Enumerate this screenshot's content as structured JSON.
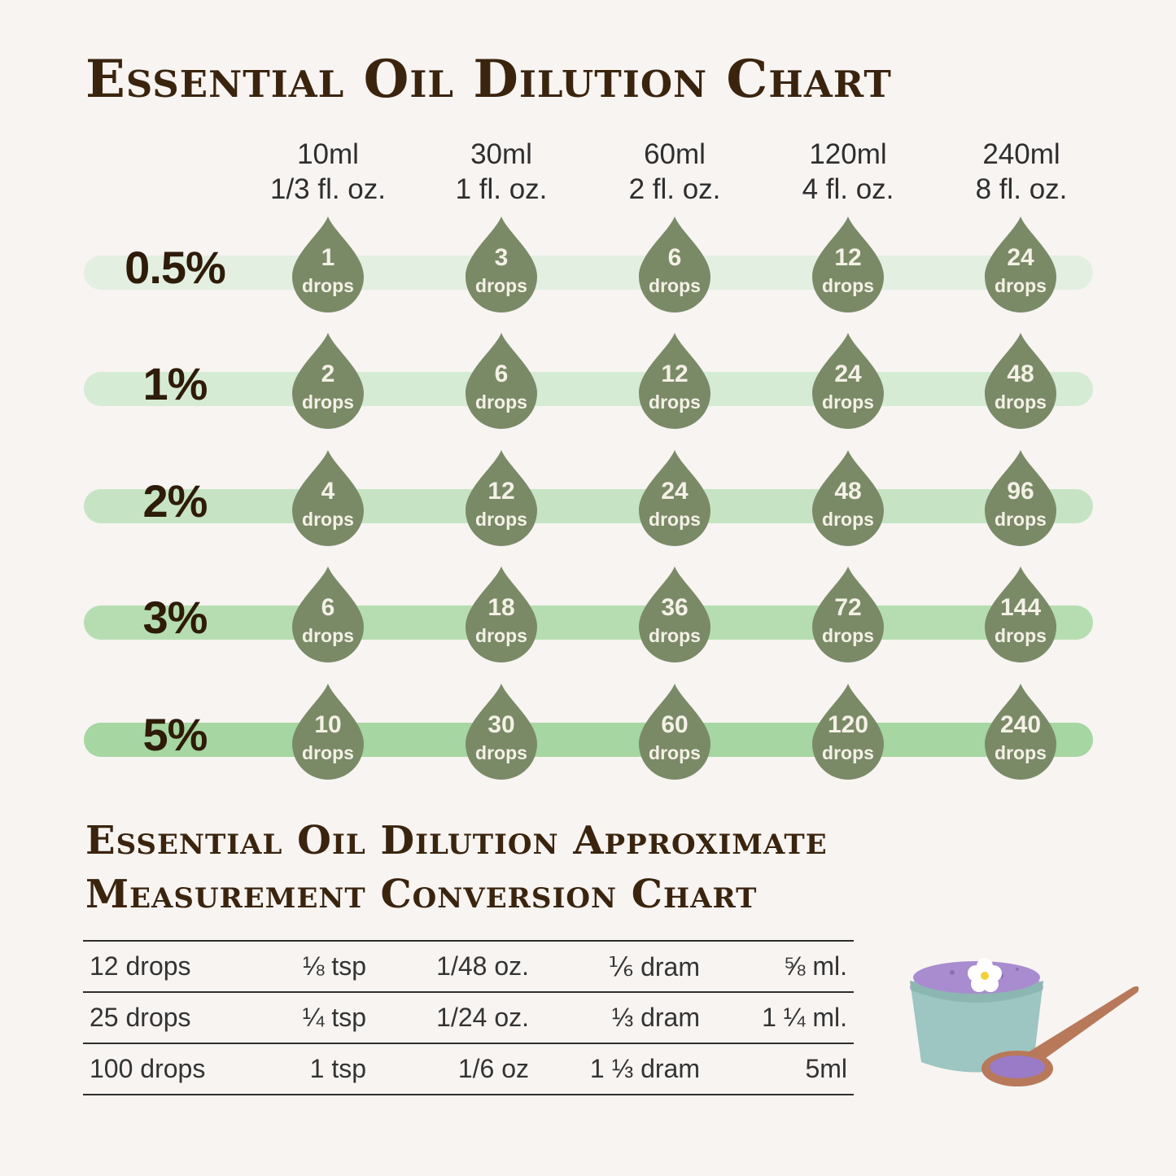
{
  "title": "Essential Oil Dilution Chart",
  "columns": [
    {
      "ml": "10ml",
      "oz": "1/3 fl. oz."
    },
    {
      "ml": "30ml",
      "oz": "1 fl. oz."
    },
    {
      "ml": "60ml",
      "oz": "2 fl. oz."
    },
    {
      "ml": "120ml",
      "oz": "4 fl. oz."
    },
    {
      "ml": "240ml",
      "oz": "8 fl. oz."
    }
  ],
  "drop_unit": "drops",
  "rows": [
    {
      "percent": "0.5%",
      "drops": [
        "1",
        "3",
        "6",
        "12",
        "24"
      ],
      "band_color": "#e3efe1"
    },
    {
      "percent": "1%",
      "drops": [
        "2",
        "6",
        "12",
        "24",
        "48"
      ],
      "band_color": "#d6ebd4"
    },
    {
      "percent": "2%",
      "drops": [
        "4",
        "12",
        "24",
        "48",
        "96"
      ],
      "band_color": "#c6e4c3"
    },
    {
      "percent": "3%",
      "drops": [
        "6",
        "18",
        "36",
        "72",
        "144"
      ],
      "band_color": "#b6ddb2"
    },
    {
      "percent": "5%",
      "drops": [
        "10",
        "30",
        "60",
        "120",
        "240"
      ],
      "band_color": "#a6d6a2"
    }
  ],
  "drop_color": "#7a8a67",
  "conversion": {
    "title_line1": "Essential Oil Dilution Approximate",
    "title_line2": "Measurement Conversion Chart",
    "rows": [
      [
        "12 drops",
        "⅛ tsp",
        "1/48 oz.",
        "⅙ dram",
        "⅝ ml."
      ],
      [
        "25 drops",
        "¼ tsp",
        "1/24 oz.",
        "⅓ dram",
        "1 ¼ ml."
      ],
      [
        "100 drops",
        "1 tsp",
        "1/6 oz",
        "1 ⅓ dram",
        "5ml"
      ]
    ]
  }
}
